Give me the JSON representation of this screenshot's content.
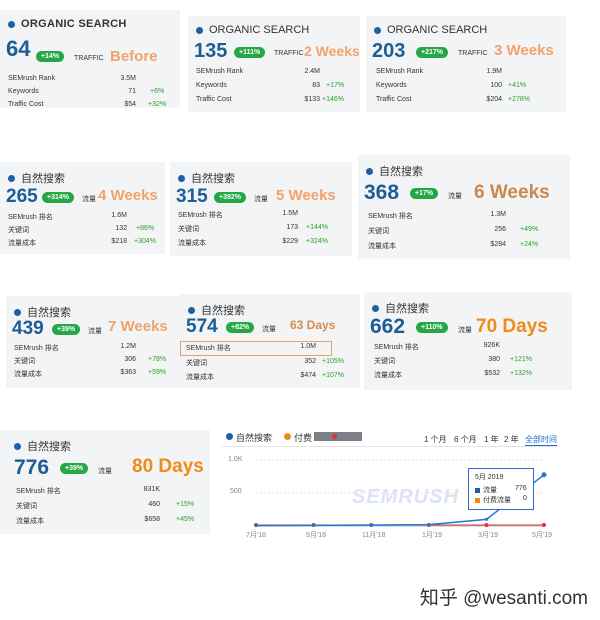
{
  "cards": [
    {
      "header": "ORGANIC SEARCH",
      "value": "64",
      "badge": "+14%",
      "traffic_label": "TRAFFIC",
      "period": "Before",
      "rows": [
        {
          "label": "SEMrush Rank",
          "value": "3.5M",
          "change": ""
        },
        {
          "label": "Keywords",
          "value": "71",
          "change": "+6%"
        },
        {
          "label": "Traffic Cost",
          "value": "$54",
          "change": "+32%"
        }
      ]
    },
    {
      "header": "ORGANIC SEARCH",
      "value": "135",
      "badge": "+111%",
      "traffic_label": "TRAFFIC",
      "period": "2 Weeks",
      "rows": [
        {
          "label": "SEMrush Rank",
          "value": "2.4M",
          "change": ""
        },
        {
          "label": "Keywords",
          "value": "83",
          "change": "+17%"
        },
        {
          "label": "Traffic Cost",
          "value": "$133",
          "change": "+146%"
        }
      ]
    },
    {
      "header": "ORGANIC SEARCH",
      "value": "203",
      "badge": "+217%",
      "traffic_label": "TRAFFIC",
      "period": "3 Weeks",
      "rows": [
        {
          "label": "SEMrush Rank",
          "value": "1.9M",
          "change": ""
        },
        {
          "label": "Keywords",
          "value": "100",
          "change": "+41%"
        },
        {
          "label": "Traffic Cost",
          "value": "$204",
          "change": "+278%"
        }
      ]
    },
    {
      "header": "自然搜索",
      "value": "265",
      "badge": "+314%",
      "traffic_label": "流量",
      "period": "4 Weeks",
      "rows": [
        {
          "label": "SEMrush 排名",
          "value": "1.6M",
          "change": ""
        },
        {
          "label": "关键词",
          "value": "132",
          "change": "+86%"
        },
        {
          "label": "流量成本",
          "value": "$218",
          "change": "+304%"
        }
      ]
    },
    {
      "header": "自然搜索",
      "value": "315",
      "badge": "+392%",
      "traffic_label": "流量",
      "period": "5 Weeks",
      "rows": [
        {
          "label": "SEMrush 排名",
          "value": "1.5M",
          "change": ""
        },
        {
          "label": "关键词",
          "value": "173",
          "change": "+144%"
        },
        {
          "label": "流量成本",
          "value": "$229",
          "change": "+324%"
        }
      ]
    },
    {
      "header": "自然搜索",
      "value": "368",
      "badge": "+17%",
      "traffic_label": "流量",
      "period": "6 Weeks",
      "rows": [
        {
          "label": "SEMrush 排名",
          "value": "1.3M",
          "change": ""
        },
        {
          "label": "关键词",
          "value": "256",
          "change": "+49%"
        },
        {
          "label": "流量成本",
          "value": "$284",
          "change": "+24%"
        }
      ]
    },
    {
      "header": "自然搜索",
      "value": "439",
      "badge": "+39%",
      "traffic_label": "流量",
      "period": "7 Weeks",
      "rows": [
        {
          "label": "SEMrush 排名",
          "value": "1.2M",
          "change": ""
        },
        {
          "label": "关键词",
          "value": "306",
          "change": "+78%"
        },
        {
          "label": "流量成本",
          "value": "$363",
          "change": "+59%"
        }
      ]
    },
    {
      "header": "自然搜索",
      "value": "574",
      "badge": "+82%",
      "traffic_label": "流量",
      "period": "63 Days",
      "rows": [
        {
          "label": "SEMrush 排名",
          "value": "1.0M",
          "change": ""
        },
        {
          "label": "关键词",
          "value": "352",
          "change": "+105%"
        },
        {
          "label": "流量成本",
          "value": "$474",
          "change": "+107%"
        }
      ]
    },
    {
      "header": "自然搜索",
      "value": "662",
      "badge": "+110%",
      "traffic_label": "流量",
      "period": "70 Days",
      "rows": [
        {
          "label": "SEMrush 排名",
          "value": "926K",
          "change": ""
        },
        {
          "label": "关键词",
          "value": "380",
          "change": "+121%"
        },
        {
          "label": "流量成本",
          "value": "$532",
          "change": "+132%"
        }
      ]
    },
    {
      "header": "自然搜索",
      "value": "776",
      "badge": "+39%",
      "traffic_label": "流量",
      "period": "80 Days",
      "rows": [
        {
          "label": "SEMrush 排名",
          "value": "831K",
          "change": ""
        },
        {
          "label": "关键词",
          "value": "460",
          "change": "+15%"
        },
        {
          "label": "流量成本",
          "value": "$658",
          "change": "+45%"
        }
      ]
    }
  ],
  "chart": {
    "legend": [
      "自然搜索",
      "付费"
    ],
    "ranges": [
      "1 个月",
      "6 个月",
      "1 年",
      "2 年",
      "全部时间"
    ],
    "active_range": "全部时间",
    "y_ticks": [
      "1.0K",
      "500"
    ],
    "x_ticks": [
      "7月'18",
      "9月'18",
      "11月'18",
      "1月'19",
      "3月'19",
      "5月'19"
    ],
    "watermark": "SEMRUSH",
    "tooltip": {
      "title": "5月 2019",
      "rows": [
        {
          "label": "流量",
          "value": "776"
        },
        {
          "label": "付费流量",
          "value": "0"
        }
      ]
    },
    "colors": {
      "organic": "#1f77d6",
      "paid": "#f08a18"
    }
  },
  "chart_data": {
    "type": "line",
    "x": [
      "7月'18",
      "9月'18",
      "11月'18",
      "1月'19",
      "3月'19",
      "5月'19"
    ],
    "series": [
      {
        "name": "自然搜索",
        "values": [
          5,
          10,
          15,
          20,
          100,
          776
        ]
      },
      {
        "name": "付费",
        "values": [
          0,
          0,
          0,
          0,
          0,
          0
        ]
      }
    ],
    "ylim": [
      0,
      1000
    ]
  },
  "footer": {
    "watermark": "知乎 @wesanti.com"
  }
}
